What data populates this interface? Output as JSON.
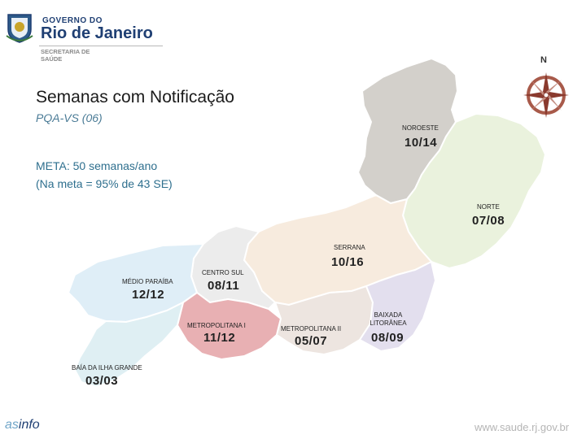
{
  "header": {
    "gov_line1": "GOVERNO DO",
    "gov_line2": "Rio de Janeiro",
    "secretaria_line1": "SECRETARIA DE",
    "secretaria_line2": "SAÚDE",
    "north_label": "N"
  },
  "slide": {
    "title": "Semanas com Notificação",
    "subtitle": "PQA-VS (06)",
    "meta_line1": "META: 50 semanas/ano",
    "meta_line2": "(Na meta = 95% de 43 SE)"
  },
  "regions": [
    {
      "name": "NOROESTE",
      "value": "10/14",
      "color": "#d3d0cb"
    },
    {
      "name": "NORTE",
      "value": "07/08",
      "color": "#eaf2dd"
    },
    {
      "name": "SERRANA",
      "value": "10/16",
      "color": "#f7ebde"
    },
    {
      "name": "CENTRO SUL",
      "value": "08/11",
      "color": "#ececec"
    },
    {
      "name": "MÉDIO PARAÍBA",
      "value": "12/12",
      "color": "#dfeef7"
    },
    {
      "name": "METROPOLITANA I",
      "value": "11/12",
      "color": "#e8b0b3"
    },
    {
      "name": "METROPOLITANA II",
      "value": "05/07",
      "color": "#ede5e0"
    },
    {
      "name": "BAIXADA LITORÂNEA",
      "value": "08/09",
      "color": "#e3dfee"
    },
    {
      "name": "BAÍA DA ILHA GRANDE",
      "value": "03/03",
      "color": "#dfeff3"
    }
  ],
  "footer": {
    "logo_prefix": "as",
    "logo_suffix": "info",
    "url": "www.saude.rj.gov.br"
  },
  "icons": [
    "state-seal-icon",
    "compass-rose-icon"
  ]
}
